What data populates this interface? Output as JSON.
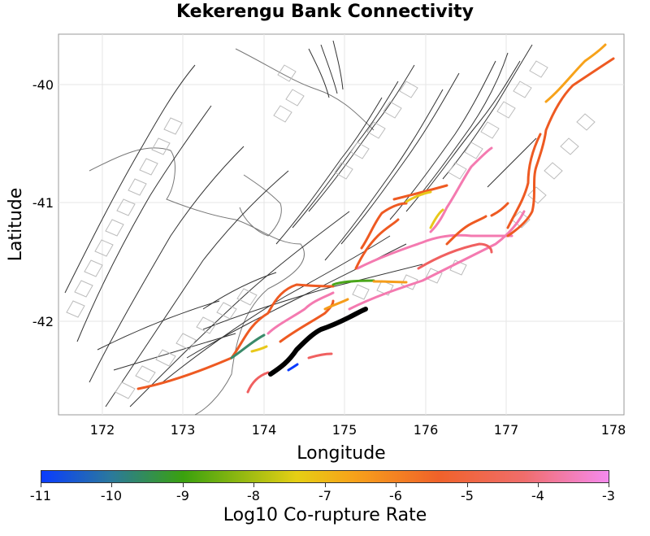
{
  "title": "Kekerengu Bank Connectivity",
  "x_axis": {
    "label": "Longitude",
    "ticks": [
      "172",
      "173",
      "174",
      "175",
      "176",
      "177",
      "178"
    ]
  },
  "y_axis": {
    "label": "Latitude",
    "ticks": [
      "-40",
      "-41",
      "-42"
    ]
  },
  "colorbar": {
    "label": "Log10 Co-rupture Rate",
    "ticks": [
      "-11",
      "-10",
      "-9",
      "-8",
      "-7",
      "-6",
      "-5",
      "-4",
      "-3"
    ]
  },
  "colors": {
    "source_fault": "#000000",
    "rate_minus_11": "#0a3cff",
    "rate_minus_9": "#3aa10e",
    "rate_minus_7": "#f7c51a",
    "rate_minus_5": "#f0622a",
    "rate_minus_3": "#f58aee"
  }
}
